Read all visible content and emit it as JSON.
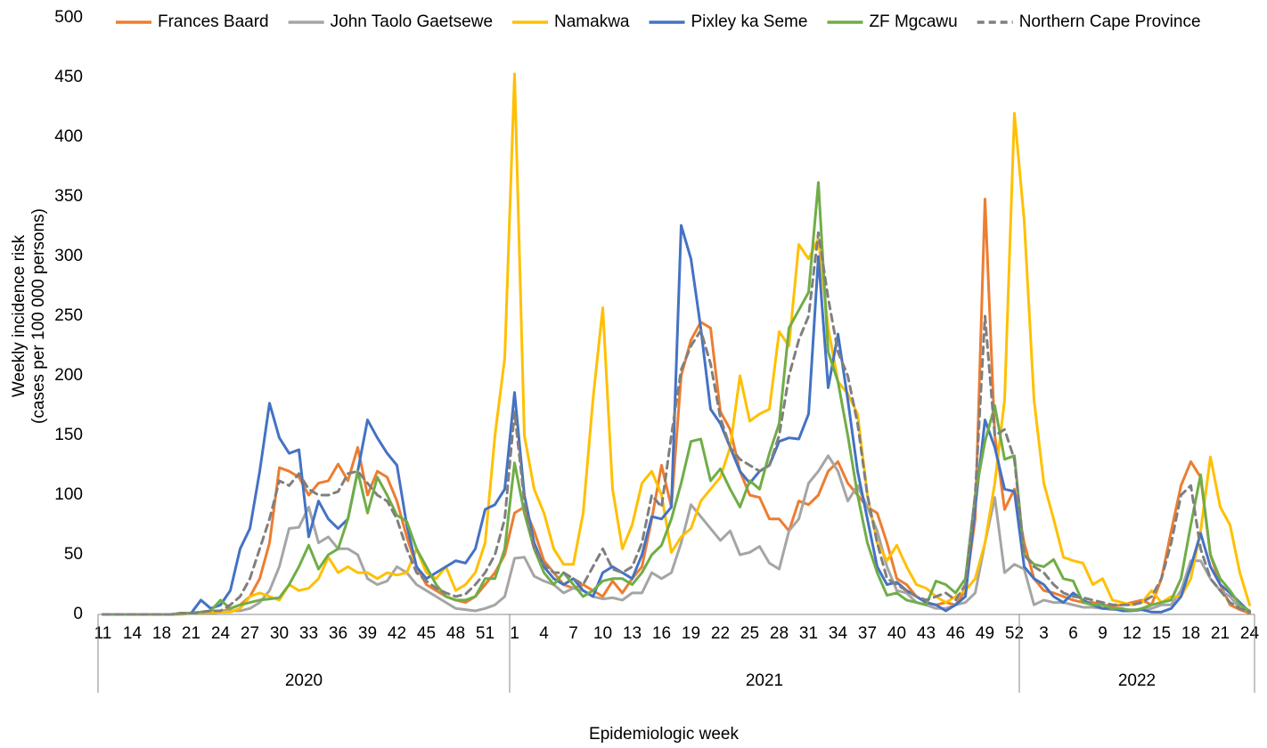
{
  "chart_data": {
    "type": "line",
    "y_label": [
      "Weekly incidence risk",
      "(cases per 100 000 persons)"
    ],
    "x_label": "Epidemiologic week",
    "ylim": [
      0,
      500
    ],
    "yticks": [
      0,
      50,
      100,
      150,
      200,
      250,
      300,
      350,
      400,
      450,
      500
    ],
    "grid": false,
    "legend": "top",
    "categories": [
      "11",
      null,
      null,
      "14",
      null,
      null,
      "18",
      null,
      null,
      "21",
      null,
      null,
      "24",
      null,
      null,
      "27",
      null,
      null,
      "30",
      null,
      null,
      "33",
      null,
      null,
      "36",
      null,
      null,
      "39",
      null,
      null,
      "42",
      null,
      null,
      "45",
      null,
      null,
      "48",
      null,
      null,
      "51",
      null,
      null,
      "1",
      null,
      null,
      "4",
      null,
      null,
      "7",
      null,
      null,
      "10",
      null,
      null,
      "13",
      null,
      null,
      "16",
      null,
      null,
      "19",
      null,
      null,
      "22",
      null,
      null,
      "25",
      null,
      null,
      "28",
      null,
      null,
      "31",
      null,
      null,
      "34",
      null,
      null,
      "37",
      null,
      null,
      "40",
      null,
      null,
      "43",
      null,
      null,
      "46",
      null,
      null,
      "49",
      null,
      null,
      "52",
      null,
      null,
      "3",
      null,
      null,
      "6",
      null,
      null,
      "9",
      null,
      null,
      "12",
      null,
      null,
      "15",
      null,
      null,
      "18",
      null,
      null,
      "21",
      null,
      null,
      "24"
    ],
    "x_groups": [
      {
        "label": "2020",
        "count": 42
      },
      {
        "label": "2021",
        "count": 52
      },
      {
        "label": "2022",
        "count": 24
      }
    ],
    "series": [
      {
        "name": "Frances Baard",
        "color": "#ED7D31",
        "dashed": false,
        "values": [
          0,
          0,
          0,
          0,
          0,
          0,
          0,
          0,
          1,
          1,
          2,
          3,
          2,
          5,
          8,
          15,
          30,
          60,
          123,
          120,
          115,
          100,
          110,
          112,
          126,
          112,
          140,
          100,
          120,
          115,
          95,
          65,
          40,
          25,
          20,
          15,
          12,
          10,
          15,
          25,
          35,
          50,
          85,
          90,
          70,
          45,
          35,
          25,
          22,
          25,
          20,
          15,
          28,
          18,
          30,
          40,
          80,
          125,
          90,
          200,
          230,
          245,
          240,
          170,
          155,
          120,
          100,
          98,
          80,
          80,
          70,
          95,
          92,
          100,
          120,
          128,
          110,
          100,
          90,
          85,
          60,
          30,
          25,
          15,
          10,
          8,
          10,
          8,
          20,
          80,
          348,
          150,
          88,
          105,
          60,
          30,
          20,
          18,
          15,
          12,
          10,
          10,
          8,
          7,
          8,
          10,
          12,
          8,
          30,
          70,
          108,
          128,
          115,
          50,
          25,
          8,
          4,
          1
        ]
      },
      {
        "name": "John Taolo Gaetsewe",
        "color": "#A5A5A5",
        "dashed": false,
        "values": [
          0,
          0,
          0,
          0,
          0,
          0,
          0,
          0,
          1,
          1,
          1,
          2,
          2,
          3,
          3,
          5,
          10,
          20,
          40,
          72,
          73,
          90,
          60,
          65,
          55,
          55,
          50,
          30,
          25,
          28,
          40,
          35,
          25,
          20,
          15,
          10,
          5,
          4,
          3,
          5,
          8,
          15,
          47,
          48,
          32,
          28,
          25,
          18,
          22,
          20,
          15,
          13,
          14,
          12,
          18,
          18,
          35,
          30,
          35,
          60,
          92,
          82,
          72,
          62,
          70,
          50,
          52,
          57,
          43,
          38,
          70,
          80,
          110,
          120,
          133,
          120,
          95,
          108,
          90,
          70,
          40,
          20,
          18,
          10,
          8,
          5,
          5,
          8,
          10,
          18,
          60,
          98,
          35,
          42,
          38,
          8,
          12,
          10,
          10,
          8,
          6,
          6,
          5,
          4,
          4,
          4,
          4,
          5,
          8,
          8,
          20,
          45,
          45,
          30,
          20,
          15,
          5,
          3
        ]
      },
      {
        "name": "Namakwa",
        "color": "#FFC000",
        "dashed": false,
        "values": [
          0,
          0,
          0,
          0,
          0,
          0,
          0,
          0,
          0,
          1,
          1,
          1,
          2,
          2,
          5,
          15,
          18,
          15,
          12,
          25,
          20,
          22,
          30,
          48,
          35,
          40,
          35,
          35,
          30,
          35,
          33,
          35,
          55,
          35,
          30,
          40,
          20,
          25,
          35,
          60,
          150,
          215,
          453,
          150,
          105,
          85,
          55,
          42,
          42,
          85,
          180,
          257,
          105,
          55,
          75,
          110,
          120,
          100,
          52,
          65,
          72,
          95,
          105,
          115,
          140,
          200,
          162,
          168,
          172,
          237,
          225,
          310,
          298,
          315,
          240,
          195,
          185,
          168,
          100,
          60,
          45,
          58,
          40,
          25,
          22,
          15,
          10,
          15,
          20,
          30,
          60,
          110,
          180,
          420,
          330,
          180,
          110,
          80,
          48,
          45,
          43,
          25,
          30,
          12,
          10,
          8,
          10,
          20,
          10,
          15,
          15,
          30,
          70,
          132,
          90,
          75,
          35,
          8
        ]
      },
      {
        "name": "Pixley ka Seme",
        "color": "#4472C4",
        "dashed": false,
        "values": [
          0,
          0,
          0,
          0,
          0,
          0,
          0,
          0,
          1,
          1,
          12,
          5,
          8,
          20,
          55,
          72,
          120,
          177,
          148,
          135,
          138,
          65,
          95,
          80,
          72,
          80,
          120,
          163,
          148,
          135,
          125,
          75,
          40,
          30,
          35,
          40,
          45,
          43,
          55,
          88,
          92,
          105,
          186,
          100,
          60,
          40,
          30,
          25,
          30,
          20,
          15,
          35,
          40,
          35,
          30,
          50,
          82,
          80,
          90,
          326,
          298,
          240,
          172,
          160,
          140,
          120,
          110,
          120,
          125,
          145,
          148,
          147,
          168,
          300,
          190,
          235,
          180,
          120,
          80,
          40,
          25,
          27,
          20,
          15,
          10,
          8,
          3,
          8,
          15,
          90,
          163,
          140,
          105,
          103,
          40,
          30,
          25,
          15,
          10,
          18,
          12,
          8,
          5,
          5,
          3,
          3,
          4,
          2,
          2,
          5,
          15,
          40,
          68,
          40,
          25,
          18,
          10,
          2
        ]
      },
      {
        "name": "ZF Mgcawu",
        "color": "#70AD47",
        "dashed": false,
        "values": [
          0,
          0,
          0,
          0,
          0,
          0,
          0,
          0,
          1,
          1,
          2,
          3,
          12,
          5,
          8,
          10,
          12,
          13,
          14,
          25,
          40,
          58,
          38,
          50,
          55,
          80,
          120,
          85,
          115,
          100,
          83,
          78,
          55,
          40,
          25,
          15,
          12,
          12,
          15,
          30,
          30,
          55,
          127,
          85,
          55,
          35,
          25,
          35,
          25,
          15,
          20,
          28,
          30,
          30,
          25,
          35,
          50,
          58,
          80,
          110,
          145,
          147,
          112,
          122,
          105,
          90,
          112,
          105,
          135,
          160,
          240,
          255,
          270,
          362,
          220,
          195,
          150,
          100,
          60,
          35,
          16,
          18,
          12,
          10,
          8,
          28,
          25,
          18,
          30,
          100,
          145,
          175,
          130,
          133,
          50,
          42,
          40,
          46,
          30,
          28,
          10,
          8,
          8,
          5,
          5,
          3,
          5,
          8,
          10,
          12,
          30,
          75,
          117,
          50,
          30,
          20,
          8,
          3
        ]
      },
      {
        "name": "Northern Cape Province",
        "color": "#7F7F7F",
        "dashed": true,
        "values": [
          0,
          0,
          0,
          0,
          0,
          0,
          0,
          0,
          1,
          1,
          2,
          3,
          3,
          8,
          15,
          30,
          55,
          80,
          112,
          108,
          118,
          105,
          100,
          100,
          103,
          118,
          120,
          110,
          100,
          95,
          80,
          55,
          35,
          28,
          22,
          18,
          15,
          17,
          25,
          35,
          50,
          80,
          170,
          95,
          55,
          42,
          35,
          35,
          30,
          25,
          40,
          55,
          38,
          35,
          40,
          60,
          100,
          90,
          150,
          205,
          225,
          238,
          210,
          165,
          140,
          130,
          125,
          120,
          125,
          150,
          200,
          230,
          250,
          320,
          265,
          220,
          200,
          160,
          100,
          60,
          30,
          25,
          20,
          15,
          12,
          15,
          18,
          12,
          25,
          100,
          250,
          150,
          155,
          130,
          50,
          40,
          35,
          25,
          18,
          15,
          14,
          12,
          10,
          8,
          8,
          8,
          10,
          15,
          30,
          60,
          100,
          108,
          55,
          30,
          20,
          10,
          5,
          2
        ]
      }
    ]
  }
}
